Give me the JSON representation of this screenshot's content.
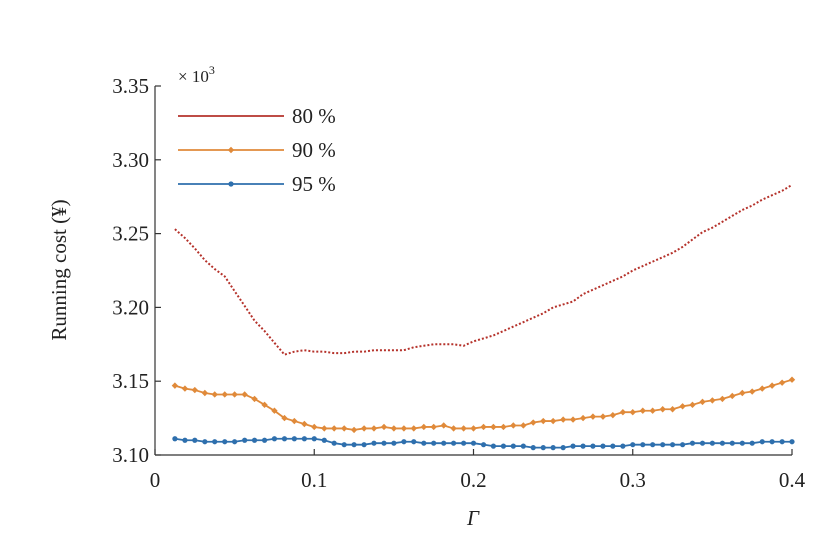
{
  "chart_data": {
    "type": "line",
    "xlabel": "Γ",
    "ylabel": "Running cost (¥)",
    "y_multiplier": "× 10",
    "y_multiplier_exp": "3",
    "xlim": [
      0,
      0.4
    ],
    "ylim": [
      3.1,
      3.35
    ],
    "x_ticks": [
      0,
      0.1,
      0.2,
      0.3,
      0.4
    ],
    "x_tick_labels": [
      "0",
      "0.1",
      "0.2",
      "0.3",
      "0.4"
    ],
    "y_ticks": [
      3.1,
      3.15,
      3.2,
      3.25,
      3.3,
      3.35
    ],
    "y_tick_labels": [
      "3.10",
      "3.15",
      "3.20",
      "3.25",
      "3.30",
      "3.35"
    ],
    "grid": false,
    "legend_position": "top-left",
    "x": [
      0.0125,
      0.0188,
      0.025,
      0.0313,
      0.0375,
      0.0438,
      0.05,
      0.0563,
      0.0625,
      0.0688,
      0.075,
      0.0813,
      0.0875,
      0.0938,
      0.1,
      0.1063,
      0.1125,
      0.1188,
      0.125,
      0.1313,
      0.1375,
      0.1438,
      0.15,
      0.1563,
      0.1625,
      0.1688,
      0.175,
      0.1813,
      0.1875,
      0.1938,
      0.2,
      0.2063,
      0.2125,
      0.2188,
      0.225,
      0.2313,
      0.2375,
      0.2438,
      0.25,
      0.2563,
      0.2625,
      0.2688,
      0.275,
      0.2813,
      0.2875,
      0.2938,
      0.3,
      0.3063,
      0.3125,
      0.3188,
      0.325,
      0.3313,
      0.3375,
      0.3438,
      0.35,
      0.3563,
      0.3625,
      0.3688,
      0.375,
      0.3813,
      0.3875,
      0.3938,
      0.4
    ],
    "series": [
      {
        "name": "80 %",
        "color": "#b5322b",
        "style": "dotted",
        "marker": "none",
        "values": [
          3.253,
          3.247,
          3.24,
          3.232,
          3.226,
          3.221,
          3.211,
          3.201,
          3.191,
          3.184,
          3.176,
          3.168,
          3.17,
          3.171,
          3.17,
          3.17,
          3.169,
          3.169,
          3.17,
          3.17,
          3.171,
          3.171,
          3.171,
          3.171,
          3.173,
          3.174,
          3.175,
          3.175,
          3.175,
          3.174,
          3.177,
          3.179,
          3.181,
          3.184,
          3.187,
          3.19,
          3.193,
          3.196,
          3.2,
          3.202,
          3.204,
          3.209,
          3.212,
          3.215,
          3.218,
          3.221,
          3.225,
          3.228,
          3.231,
          3.234,
          3.237,
          3.241,
          3.246,
          3.251,
          3.254,
          3.258,
          3.262,
          3.266,
          3.269,
          3.273,
          3.276,
          3.279,
          3.283
        ]
      },
      {
        "name": "90 %",
        "color": "#e08a3a",
        "style": "solid",
        "marker": "diamond",
        "values": [
          3.147,
          3.145,
          3.144,
          3.142,
          3.141,
          3.141,
          3.141,
          3.141,
          3.138,
          3.134,
          3.13,
          3.125,
          3.123,
          3.121,
          3.119,
          3.118,
          3.118,
          3.118,
          3.117,
          3.118,
          3.118,
          3.119,
          3.118,
          3.118,
          3.118,
          3.119,
          3.119,
          3.12,
          3.118,
          3.118,
          3.118,
          3.119,
          3.119,
          3.119,
          3.12,
          3.12,
          3.122,
          3.123,
          3.123,
          3.124,
          3.124,
          3.125,
          3.126,
          3.126,
          3.127,
          3.129,
          3.129,
          3.13,
          3.13,
          3.131,
          3.131,
          3.133,
          3.134,
          3.136,
          3.137,
          3.138,
          3.14,
          3.142,
          3.143,
          3.145,
          3.147,
          3.149,
          3.151
        ]
      },
      {
        "name": "95 %",
        "color": "#2e6fad",
        "style": "solid",
        "marker": "dot",
        "values": [
          3.111,
          3.11,
          3.11,
          3.109,
          3.109,
          3.109,
          3.109,
          3.11,
          3.11,
          3.11,
          3.111,
          3.111,
          3.111,
          3.111,
          3.111,
          3.11,
          3.108,
          3.107,
          3.107,
          3.107,
          3.108,
          3.108,
          3.108,
          3.109,
          3.109,
          3.108,
          3.108,
          3.108,
          3.108,
          3.108,
          3.108,
          3.107,
          3.106,
          3.106,
          3.106,
          3.106,
          3.105,
          3.105,
          3.105,
          3.105,
          3.106,
          3.106,
          3.106,
          3.106,
          3.106,
          3.106,
          3.107,
          3.107,
          3.107,
          3.107,
          3.107,
          3.107,
          3.108,
          3.108,
          3.108,
          3.108,
          3.108,
          3.108,
          3.108,
          3.109,
          3.109,
          3.109,
          3.109
        ]
      }
    ]
  }
}
